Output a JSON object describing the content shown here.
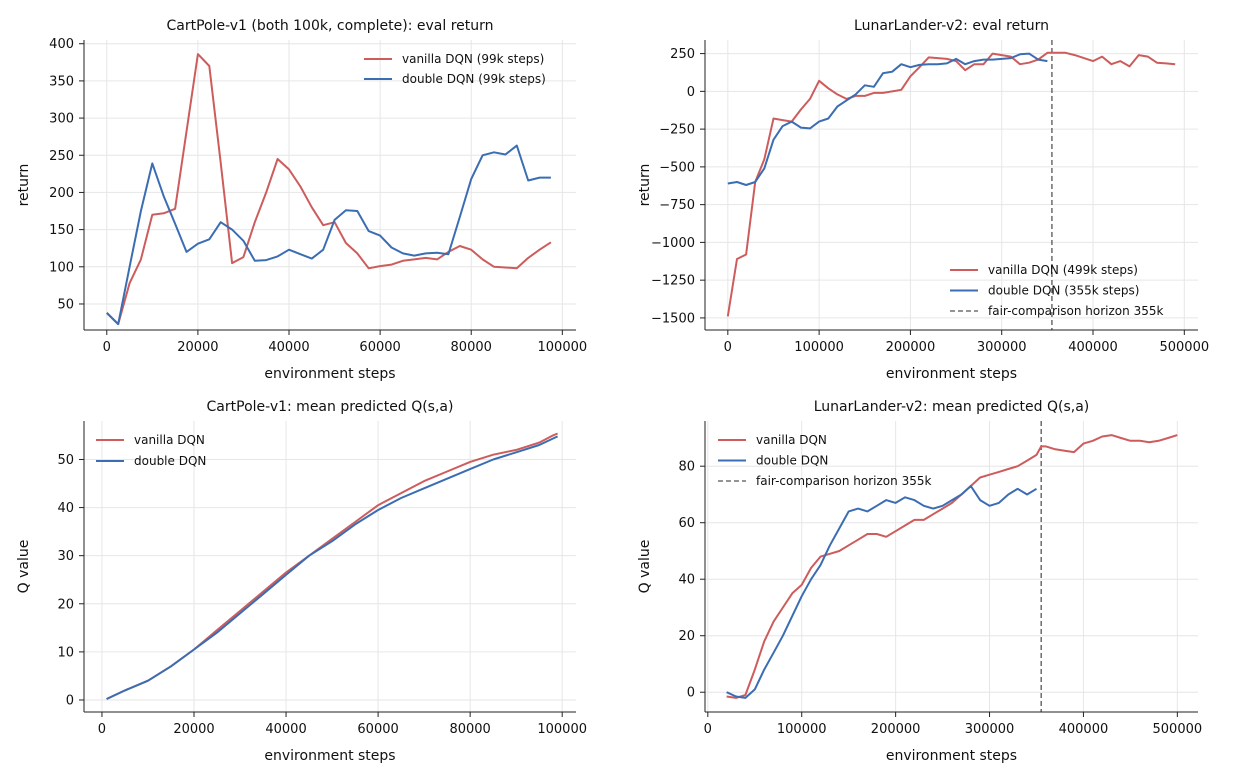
{
  "chart_data": [
    {
      "type": "line",
      "title": "CartPole-v1 (both 100k, complete): eval return",
      "xlabel": "environment steps",
      "ylabel": "return",
      "xlim": [
        -5000,
        103000
      ],
      "ylim": [
        15,
        405
      ],
      "xticks": [
        0,
        20000,
        40000,
        60000,
        80000,
        100000
      ],
      "xtick_labels": [
        "0",
        "20000",
        "40000",
        "60000",
        "80000",
        "100000"
      ],
      "yticks": [
        50,
        100,
        150,
        200,
        250,
        300,
        350,
        400
      ],
      "ytick_labels": [
        "50",
        "100",
        "150",
        "200",
        "250",
        "300",
        "350",
        "400"
      ],
      "grid": true,
      "legend": "top-right",
      "series": [
        {
          "name": "vanilla DQN (99k steps)",
          "color": "#cd5c5c",
          "x": [
            0,
            2500,
            5000,
            7500,
            10000,
            12500,
            15000,
            17500,
            20000,
            22500,
            25000,
            27500,
            30000,
            32500,
            35000,
            37500,
            40000,
            42500,
            45000,
            47500,
            50000,
            52500,
            55000,
            57500,
            60000,
            62500,
            65000,
            67500,
            70000,
            72500,
            75000,
            77500,
            80000,
            82500,
            85000,
            87500,
            90000,
            92500,
            95000,
            97500
          ],
          "y": [
            38,
            23,
            78,
            110,
            170,
            172,
            178,
            282,
            386,
            370,
            240,
            105,
            113,
            160,
            200,
            245,
            231,
            208,
            180,
            156,
            160,
            132,
            118,
            98,
            101,
            103,
            108,
            110,
            112,
            110,
            120,
            128,
            123,
            110,
            100,
            99,
            98,
            112,
            123,
            133
          ]
        },
        {
          "name": "double DQN (99k steps)",
          "color": "#3b6db3",
          "x": [
            0,
            2500,
            5000,
            7500,
            10000,
            12500,
            15000,
            17500,
            20000,
            22500,
            25000,
            27500,
            30000,
            32500,
            35000,
            37500,
            40000,
            42500,
            45000,
            47500,
            50000,
            52500,
            55000,
            57500,
            60000,
            62500,
            65000,
            67500,
            70000,
            72500,
            75000,
            77500,
            80000,
            82500,
            85000,
            87500,
            90000,
            92500,
            95000,
            97500
          ],
          "y": [
            38,
            23,
            100,
            175,
            239,
            195,
            158,
            120,
            131,
            137,
            160,
            150,
            135,
            108,
            109,
            114,
            123,
            117,
            111,
            123,
            163,
            176,
            175,
            148,
            142,
            126,
            118,
            115,
            118,
            119,
            117,
            167,
            218,
            250,
            254,
            251,
            263,
            216,
            220,
            220
          ]
        }
      ]
    },
    {
      "type": "line",
      "title": "LunarLander-v2: eval return",
      "xlabel": "environment steps",
      "ylabel": "return",
      "xlim": [
        -25000,
        515000
      ],
      "ylim": [
        -1580,
        340
      ],
      "xticks": [
        0,
        100000,
        200000,
        300000,
        400000,
        500000
      ],
      "xtick_labels": [
        "0",
        "100000",
        "200000",
        "300000",
        "400000",
        "500000"
      ],
      "yticks": [
        -1500,
        -1250,
        -1000,
        -750,
        -500,
        -250,
        0,
        250
      ],
      "ytick_labels": [
        "−1500",
        "−1250",
        "−1000",
        "−750",
        "−500",
        "−250",
        "0",
        "250"
      ],
      "grid": true,
      "legend": "lower-right",
      "vline": {
        "x": 355000,
        "label": "fair-comparison horizon 355k",
        "color": "#555555"
      },
      "series": [
        {
          "name": "vanilla DQN (499k steps)",
          "color": "#cd5c5c",
          "x": [
            0,
            10000,
            20000,
            30000,
            40000,
            50000,
            60000,
            70000,
            80000,
            90000,
            100000,
            110000,
            120000,
            130000,
            140000,
            150000,
            160000,
            170000,
            180000,
            190000,
            200000,
            210000,
            220000,
            230000,
            240000,
            250000,
            260000,
            270000,
            280000,
            290000,
            300000,
            310000,
            320000,
            330000,
            340000,
            350000,
            360000,
            370000,
            380000,
            390000,
            400000,
            410000,
            420000,
            430000,
            440000,
            450000,
            460000,
            470000,
            480000,
            490000
          ],
          "y": [
            -1490,
            -1110,
            -1080,
            -600,
            -450,
            -180,
            -190,
            -200,
            -120,
            -50,
            70,
            20,
            -20,
            -50,
            -30,
            -30,
            -10,
            -10,
            0,
            10,
            100,
            160,
            225,
            220,
            215,
            200,
            140,
            180,
            180,
            250,
            240,
            230,
            180,
            190,
            210,
            255,
            255,
            255,
            240,
            220,
            200,
            230,
            180,
            200,
            165,
            240,
            230,
            190,
            185,
            180
          ]
        },
        {
          "name": "double DQN (355k steps)",
          "color": "#3b6db3",
          "x": [
            0,
            10000,
            20000,
            30000,
            40000,
            50000,
            60000,
            70000,
            80000,
            90000,
            100000,
            110000,
            120000,
            130000,
            140000,
            150000,
            160000,
            170000,
            180000,
            190000,
            200000,
            210000,
            220000,
            230000,
            240000,
            250000,
            260000,
            270000,
            280000,
            290000,
            300000,
            310000,
            320000,
            330000,
            340000,
            350000
          ],
          "y": [
            -610,
            -600,
            -620,
            -600,
            -510,
            -320,
            -230,
            -200,
            -240,
            -245,
            -200,
            -180,
            -100,
            -60,
            -20,
            40,
            30,
            120,
            130,
            180,
            160,
            175,
            180,
            180,
            185,
            215,
            180,
            200,
            210,
            210,
            215,
            220,
            245,
            250,
            210,
            200
          ]
        }
      ]
    },
    {
      "type": "line",
      "title": "CartPole-v1: mean predicted Q(s,a)",
      "xlabel": "environment steps",
      "ylabel": "Q value",
      "xlim": [
        -3900,
        103000
      ],
      "ylim": [
        -2.5,
        58
      ],
      "xticks": [
        0,
        20000,
        40000,
        60000,
        80000,
        100000
      ],
      "xtick_labels": [
        "0",
        "20000",
        "40000",
        "60000",
        "80000",
        "100000"
      ],
      "yticks": [
        0,
        10,
        20,
        30,
        40,
        50
      ],
      "ytick_labels": [
        "0",
        "10",
        "20",
        "30",
        "40",
        "50"
      ],
      "grid": true,
      "legend": "top-left",
      "series": [
        {
          "name": "vanilla DQN",
          "color": "#cd5c5c",
          "x": [
            1000,
            5000,
            10000,
            15000,
            20000,
            25000,
            30000,
            35000,
            40000,
            45000,
            50000,
            55000,
            60000,
            65000,
            70000,
            75000,
            80000,
            85000,
            90000,
            95000,
            98000,
            99000
          ],
          "y": [
            0.2,
            2.0,
            4.0,
            7.0,
            10.5,
            14.5,
            18.5,
            22.5,
            26.5,
            30.0,
            33.5,
            37.0,
            40.5,
            43.0,
            45.5,
            47.5,
            49.5,
            51.0,
            52.0,
            53.5,
            55.0,
            55.4
          ]
        },
        {
          "name": "double DQN",
          "color": "#3b6db3",
          "x": [
            1000,
            5000,
            10000,
            15000,
            20000,
            25000,
            30000,
            35000,
            40000,
            45000,
            50000,
            55000,
            60000,
            65000,
            70000,
            75000,
            80000,
            85000,
            90000,
            95000,
            99000
          ],
          "y": [
            0.2,
            2.0,
            4.0,
            7.0,
            10.5,
            14.0,
            18.0,
            22.0,
            26.0,
            30.0,
            33.0,
            36.5,
            39.5,
            42.0,
            44.0,
            46.0,
            48.0,
            50.0,
            51.5,
            53.0,
            54.8
          ]
        }
      ]
    },
    {
      "type": "line",
      "title": "LunarLander-v2: mean predicted Q(s,a)",
      "xlabel": "environment steps",
      "ylabel": "Q value",
      "xlim": [
        -3000,
        522000
      ],
      "ylim": [
        -7,
        96
      ],
      "xticks": [
        0,
        100000,
        200000,
        300000,
        400000,
        500000
      ],
      "xtick_labels": [
        "0",
        "100000",
        "200000",
        "300000",
        "400000",
        "500000"
      ],
      "yticks": [
        0,
        20,
        40,
        60,
        80
      ],
      "ytick_labels": [
        "0",
        "20",
        "40",
        "60",
        "80"
      ],
      "grid": true,
      "legend": "top-left",
      "vline": {
        "x": 355000,
        "label": "fair-comparison horizon 355k",
        "color": "#555555"
      },
      "series": [
        {
          "name": "vanilla DQN",
          "color": "#cd5c5c",
          "x": [
            20000,
            30000,
            40000,
            50000,
            60000,
            70000,
            80000,
            90000,
            100000,
            110000,
            120000,
            130000,
            140000,
            150000,
            160000,
            170000,
            180000,
            190000,
            200000,
            210000,
            220000,
            230000,
            240000,
            250000,
            260000,
            270000,
            280000,
            290000,
            300000,
            310000,
            320000,
            330000,
            340000,
            350000,
            355000,
            360000,
            370000,
            380000,
            390000,
            400000,
            410000,
            420000,
            430000,
            440000,
            450000,
            460000,
            470000,
            480000,
            490000,
            500000
          ],
          "y": [
            -1.5,
            -2.0,
            -1.0,
            8.0,
            18.0,
            25.0,
            30.0,
            35.0,
            38.0,
            44.0,
            48.0,
            49.0,
            50.0,
            52.0,
            54.0,
            56.0,
            56.0,
            55.0,
            57.0,
            59.0,
            61.0,
            61.0,
            63.0,
            65.0,
            67.0,
            70.0,
            73.0,
            76.0,
            77.0,
            78.0,
            79.0,
            80.0,
            82.0,
            84.0,
            87.0,
            87.0,
            86.0,
            85.5,
            85.0,
            88.0,
            89.0,
            90.5,
            91.0,
            90.0,
            89.0,
            89.0,
            88.5,
            89.0,
            90.0,
            91.0
          ]
        },
        {
          "name": "double DQN",
          "color": "#3b6db3",
          "x": [
            20000,
            30000,
            40000,
            50000,
            60000,
            70000,
            80000,
            90000,
            100000,
            110000,
            120000,
            130000,
            140000,
            150000,
            160000,
            170000,
            180000,
            190000,
            200000,
            210000,
            220000,
            230000,
            240000,
            250000,
            260000,
            270000,
            280000,
            290000,
            300000,
            310000,
            320000,
            330000,
            340000,
            350000
          ],
          "y": [
            0,
            -1.5,
            -2.0,
            1.0,
            8.0,
            14.0,
            20.0,
            27.0,
            34.0,
            40.0,
            45.0,
            52.0,
            58.0,
            64.0,
            65.0,
            64.0,
            66.0,
            68.0,
            67.0,
            69.0,
            68.0,
            66.0,
            65.0,
            66.0,
            68.0,
            70.0,
            73.0,
            68.0,
            66.0,
            67.0,
            70.0,
            72.0,
            70.0,
            72.0
          ]
        }
      ]
    }
  ]
}
